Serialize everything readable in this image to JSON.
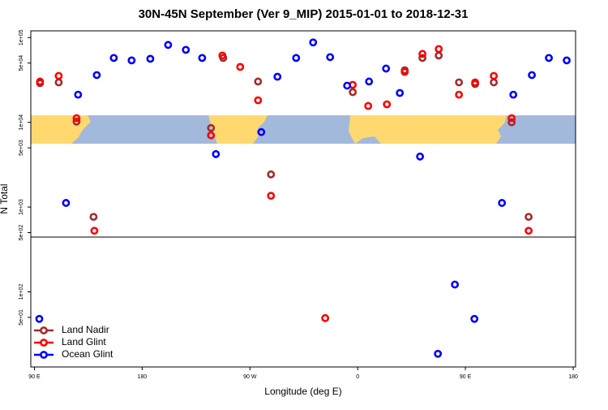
{
  "chart_data": {
    "type": "scatter",
    "title": "30N-45N September (Ver 9_MIP)   2015-01-01 to 2018-12-31",
    "x_label": "Longitude (deg E)",
    "y_label": "N Total",
    "log_y": true,
    "legend": "lower left",
    "xlim": [
      87,
      542
    ],
    "xticks": [
      {
        "value": 90,
        "label": "90 E"
      },
      {
        "value": 180,
        "label": "180"
      },
      {
        "value": 270,
        "label": "90 W"
      },
      {
        "value": 360,
        "label": "0"
      },
      {
        "value": 450,
        "label": "90 E"
      },
      {
        "value": 540,
        "label": "180"
      }
    ],
    "ylim": [
      13,
      120000
    ],
    "yticks": [
      {
        "value": 100000,
        "label": "1e+05"
      },
      {
        "value": 50000,
        "label": "5e+04"
      },
      {
        "value": 10000,
        "label": "1e+04"
      },
      {
        "value": 5000,
        "label": "5e+03"
      },
      {
        "value": 1000,
        "label": "1e+03"
      },
      {
        "value": 500,
        "label": "5e+02"
      },
      {
        "value": 100,
        "label": "1e+02"
      },
      {
        "value": 50,
        "label": "5e+01"
      }
    ],
    "series": [
      {
        "name": "Land Nadir",
        "color": "#a52a2a",
        "x": [
          94.7,
          110.3,
          125.2,
          139.4,
          237.5,
          247.7,
          276.8,
          287.6,
          355.9,
          399.3,
          414.1,
          427.7,
          444.6,
          458.1,
          473.7,
          488.6,
          502.8
        ],
        "values": [
          29000,
          29600,
          10200,
          767,
          8570,
          57500,
          30300,
          2430,
          22700,
          41200,
          57500,
          61400,
          29600,
          28300,
          29600,
          10000,
          767
        ]
      },
      {
        "name": "Land Glint",
        "color": "#ff0000",
        "x": [
          94.7,
          110.3,
          125.2,
          140.1,
          237.5,
          247,
          261.9,
          276.8,
          287.6,
          332.9,
          355.9,
          368.8,
          384.4,
          399.3,
          414.1,
          427.7,
          444.6,
          458.1,
          473.7,
          488.6,
          502.8
        ],
        "values": [
          30300,
          35300,
          11200,
          526,
          7020,
          61400,
          45100,
          18200,
          1360,
          49,
          27700,
          15600,
          16300,
          39400,
          64200,
          73300,
          21200,
          29600,
          35300,
          11200,
          526
        ]
      },
      {
        "name": "Ocean Glint",
        "color": "#0000ff",
        "x": [
          94.1,
          116.4,
          126.5,
          142.1,
          156.3,
          171.2,
          186.8,
          201.7,
          216.5,
          230.1,
          241.6,
          279.5,
          293,
          308.6,
          322.8,
          337,
          351.2,
          369.5,
          383.7,
          395.2,
          412.1,
          427,
          441.2,
          457.5,
          480.5,
          490,
          505.5,
          519.7,
          534.6
        ],
        "values": [
          48,
          1120,
          21200,
          36100,
          57500,
          53800,
          56200,
          81900,
          71700,
          57500,
          4220,
          7670,
          34500,
          57500,
          87600,
          58800,
          27100,
          30300,
          43100,
          22200,
          3950,
          18.6,
          122,
          48,
          1120,
          21200,
          36100,
          57500,
          53800
        ]
      }
    ]
  }
}
